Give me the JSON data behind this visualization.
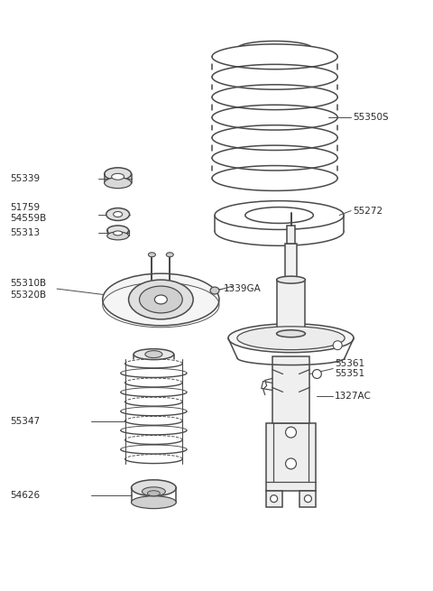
{
  "bg_color": "#ffffff",
  "lc": "#4a4a4a",
  "tc": "#2a2a2a",
  "figsize": [
    4.8,
    6.55
  ],
  "dpi": 100,
  "xlim": [
    0,
    480
  ],
  "ylim": [
    0,
    655
  ]
}
